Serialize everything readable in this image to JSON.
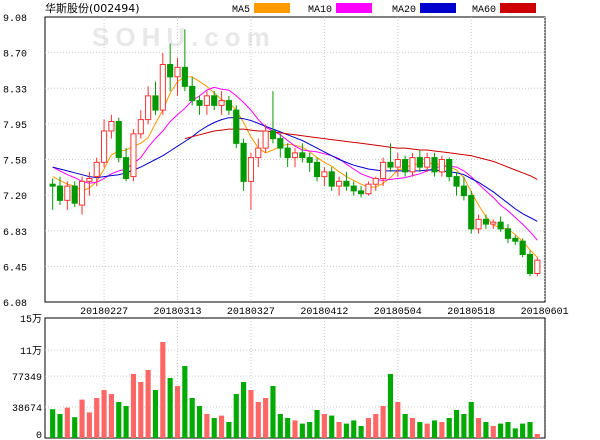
{
  "title": "华斯股份(002494)",
  "watermark": "SOHU.com",
  "colors": {
    "up": "#ff3333",
    "down": "#009900",
    "vol_up": "#ff6666",
    "vol_down": "#00aa00",
    "grid": "#cccccc",
    "axis": "#000000"
  },
  "legend": [
    {
      "name": "MA5",
      "color": "#ff9900"
    },
    {
      "name": "MA10",
      "color": "#ff00ff"
    },
    {
      "name": "MA20",
      "color": "#0000cc"
    },
    {
      "name": "MA60",
      "color": "#cc0000"
    }
  ],
  "chart_data": {
    "type": "candlestick",
    "y_ticks": [
      "9.08",
      "8.70",
      "8.33",
      "7.95",
      "7.58",
      "7.20",
      "6.83",
      "6.45",
      "6.08"
    ],
    "ylim": [
      6.08,
      9.08
    ],
    "date_labels": [
      {
        "index": 7,
        "label": "20180227"
      },
      {
        "index": 17,
        "label": "20180313"
      },
      {
        "index": 27,
        "label": "20180327"
      },
      {
        "index": 37,
        "label": "20180412"
      },
      {
        "index": 47,
        "label": "20180504"
      },
      {
        "index": 57,
        "label": "20180518"
      },
      {
        "index": 67,
        "label": "20180601"
      }
    ],
    "volume_ticks": [
      "15万",
      "11万",
      "77349",
      "38674",
      "0"
    ],
    "volume_ylim": [
      0,
      150000
    ],
    "ohlcv": [
      [
        7.32,
        7.38,
        7.05,
        7.3,
        36000
      ],
      [
        7.3,
        7.4,
        7.1,
        7.15,
        30000
      ],
      [
        7.15,
        7.35,
        7.05,
        7.3,
        38000
      ],
      [
        7.3,
        7.35,
        7.08,
        7.12,
        26000
      ],
      [
        7.1,
        7.4,
        7.0,
        7.35,
        48000
      ],
      [
        7.35,
        7.45,
        7.2,
        7.38,
        32000
      ],
      [
        7.4,
        7.6,
        7.3,
        7.55,
        50000
      ],
      [
        7.55,
        8.0,
        7.5,
        7.88,
        60000
      ],
      [
        7.88,
        8.05,
        7.8,
        7.98,
        55000
      ],
      [
        7.98,
        8.02,
        7.55,
        7.6,
        45000
      ],
      [
        7.6,
        7.7,
        7.35,
        7.38,
        40000
      ],
      [
        7.4,
        7.9,
        7.35,
        7.85,
        80000
      ],
      [
        7.85,
        8.1,
        7.8,
        8.0,
        70000
      ],
      [
        8.0,
        8.35,
        7.95,
        8.25,
        85000
      ],
      [
        8.25,
        8.4,
        8.05,
        8.1,
        60000
      ],
      [
        8.1,
        8.7,
        8.05,
        8.58,
        120000
      ],
      [
        8.58,
        8.8,
        8.3,
        8.45,
        75000
      ],
      [
        8.45,
        8.65,
        8.25,
        8.55,
        65000
      ],
      [
        8.55,
        8.95,
        8.3,
        8.35,
        90000
      ],
      [
        8.35,
        8.45,
        8.15,
        8.2,
        50000
      ],
      [
        8.2,
        8.25,
        8.05,
        8.15,
        40000
      ],
      [
        8.15,
        8.3,
        8.05,
        8.25,
        30000
      ],
      [
        8.25,
        8.3,
        8.1,
        8.15,
        25000
      ],
      [
        8.15,
        8.3,
        8.05,
        8.2,
        28000
      ],
      [
        8.2,
        8.25,
        8.05,
        8.1,
        20000
      ],
      [
        8.1,
        8.15,
        7.7,
        7.75,
        55000
      ],
      [
        7.75,
        7.8,
        7.25,
        7.35,
        70000
      ],
      [
        7.35,
        7.65,
        7.05,
        7.6,
        60000
      ],
      [
        7.6,
        7.8,
        7.5,
        7.7,
        45000
      ],
      [
        7.7,
        7.95,
        7.65,
        7.88,
        50000
      ],
      [
        7.88,
        8.3,
        7.75,
        7.8,
        65000
      ],
      [
        7.8,
        7.85,
        7.6,
        7.7,
        30000
      ],
      [
        7.7,
        7.75,
        7.5,
        7.6,
        25000
      ],
      [
        7.6,
        7.7,
        7.5,
        7.65,
        22000
      ],
      [
        7.65,
        7.75,
        7.55,
        7.6,
        18000
      ],
      [
        7.6,
        7.65,
        7.45,
        7.55,
        20000
      ],
      [
        7.55,
        7.6,
        7.35,
        7.4,
        35000
      ],
      [
        7.4,
        7.5,
        7.3,
        7.45,
        30000
      ],
      [
        7.45,
        7.5,
        7.25,
        7.3,
        28000
      ],
      [
        7.3,
        7.4,
        7.2,
        7.35,
        20000
      ],
      [
        7.35,
        7.45,
        7.25,
        7.3,
        18000
      ],
      [
        7.3,
        7.35,
        7.2,
        7.25,
        22000
      ],
      [
        7.25,
        7.3,
        7.18,
        7.22,
        15000
      ],
      [
        7.22,
        7.35,
        7.2,
        7.32,
        25000
      ],
      [
        7.32,
        7.4,
        7.25,
        7.38,
        30000
      ],
      [
        7.38,
        7.6,
        7.3,
        7.55,
        40000
      ],
      [
        7.55,
        7.75,
        7.45,
        7.5,
        80000
      ],
      [
        7.5,
        7.65,
        7.4,
        7.58,
        45000
      ],
      [
        7.58,
        7.62,
        7.4,
        7.45,
        30000
      ],
      [
        7.45,
        7.65,
        7.4,
        7.6,
        25000
      ],
      [
        7.6,
        7.68,
        7.45,
        7.5,
        20000
      ],
      [
        7.5,
        7.65,
        7.45,
        7.6,
        18000
      ],
      [
        7.6,
        7.65,
        7.4,
        7.45,
        22000
      ],
      [
        7.45,
        7.62,
        7.4,
        7.58,
        20000
      ],
      [
        7.58,
        7.6,
        7.35,
        7.4,
        25000
      ],
      [
        7.4,
        7.45,
        7.2,
        7.3,
        35000
      ],
      [
        7.3,
        7.4,
        7.15,
        7.2,
        30000
      ],
      [
        7.2,
        7.25,
        6.8,
        6.85,
        45000
      ],
      [
        6.85,
        7.0,
        6.8,
        6.95,
        25000
      ],
      [
        6.95,
        7.0,
        6.85,
        6.9,
        20000
      ],
      [
        6.9,
        6.95,
        6.85,
        6.92,
        15000
      ],
      [
        6.92,
        6.98,
        6.82,
        6.85,
        18000
      ],
      [
        6.85,
        6.9,
        6.7,
        6.75,
        20000
      ],
      [
        6.75,
        6.78,
        6.68,
        6.72,
        12000
      ],
      [
        6.72,
        6.75,
        6.55,
        6.58,
        18000
      ],
      [
        6.58,
        6.62,
        6.35,
        6.38,
        20000
      ],
      [
        6.38,
        6.55,
        6.35,
        6.52,
        5000
      ]
    ],
    "ma5": [
      7.4,
      7.36,
      7.32,
      7.3,
      7.25,
      7.28,
      7.35,
      7.48,
      7.63,
      7.67,
      7.68,
      7.72,
      7.75,
      7.81,
      7.96,
      8.1,
      8.28,
      8.4,
      8.45,
      8.45,
      8.4,
      8.35,
      8.28,
      8.21,
      8.18,
      8.1,
      7.97,
      7.82,
      7.7,
      7.65,
      7.68,
      7.72,
      7.74,
      7.73,
      7.71,
      7.66,
      7.6,
      7.55,
      7.51,
      7.45,
      7.4,
      7.36,
      7.32,
      7.29,
      7.29,
      7.33,
      7.39,
      7.47,
      7.49,
      7.53,
      7.53,
      7.55,
      7.53,
      7.53,
      7.5,
      7.47,
      7.39,
      7.24,
      7.1,
      6.98,
      6.89,
      6.86,
      6.85,
      6.79,
      6.72,
      6.63,
      6.55
    ],
    "ma10": [
      7.5,
      7.46,
      7.42,
      7.39,
      7.35,
      7.33,
      7.34,
      7.38,
      7.43,
      7.46,
      7.48,
      7.54,
      7.6,
      7.71,
      7.8,
      7.88,
      7.98,
      8.05,
      8.12,
      8.2,
      8.25,
      8.31,
      8.34,
      8.32,
      8.31,
      8.25,
      8.18,
      8.1,
      8.0,
      7.92,
      7.88,
      7.84,
      7.78,
      7.72,
      7.68,
      7.67,
      7.66,
      7.64,
      7.62,
      7.59,
      7.53,
      7.48,
      7.43,
      7.4,
      7.37,
      7.36,
      7.37,
      7.38,
      7.39,
      7.41,
      7.43,
      7.46,
      7.49,
      7.51,
      7.51,
      7.5,
      7.46,
      7.4,
      7.32,
      7.25,
      7.18,
      7.1,
      7.04,
      6.97,
      6.9,
      6.82,
      6.73
    ],
    "ma20": [
      7.5,
      7.48,
      7.46,
      7.44,
      7.42,
      7.4,
      7.39,
      7.4,
      7.41,
      7.42,
      7.44,
      7.47,
      7.5,
      7.54,
      7.58,
      7.62,
      7.67,
      7.72,
      7.77,
      7.82,
      7.88,
      7.93,
      7.97,
      8.0,
      8.02,
      8.02,
      8.01,
      7.99,
      7.96,
      7.93,
      7.9,
      7.87,
      7.84,
      7.81,
      7.78,
      7.74,
      7.7,
      7.66,
      7.62,
      7.58,
      7.55,
      7.52,
      7.5,
      7.48,
      7.47,
      7.46,
      7.46,
      7.46,
      7.46,
      7.46,
      7.46,
      7.47,
      7.47,
      7.46,
      7.45,
      7.44,
      7.42,
      7.38,
      7.34,
      7.29,
      7.24,
      7.18,
      7.12,
      7.06,
      7.01,
      6.97,
      6.93
    ],
    "ma60": [
      null,
      null,
      null,
      null,
      null,
      null,
      null,
      null,
      null,
      null,
      null,
      null,
      null,
      null,
      null,
      null,
      null,
      null,
      7.8,
      7.82,
      7.84,
      7.86,
      7.88,
      7.89,
      7.9,
      7.9,
      7.9,
      7.89,
      7.88,
      7.88,
      7.87,
      7.86,
      7.85,
      7.84,
      7.83,
      7.82,
      7.81,
      7.8,
      7.79,
      7.78,
      7.77,
      7.76,
      7.75,
      7.74,
      7.73,
      7.72,
      7.71,
      7.7,
      7.7,
      7.69,
      7.68,
      7.68,
      7.67,
      7.66,
      7.65,
      7.64,
      7.63,
      7.62,
      7.6,
      7.58,
      7.56,
      7.53,
      7.5,
      7.47,
      7.44,
      7.41,
      7.37
    ]
  }
}
